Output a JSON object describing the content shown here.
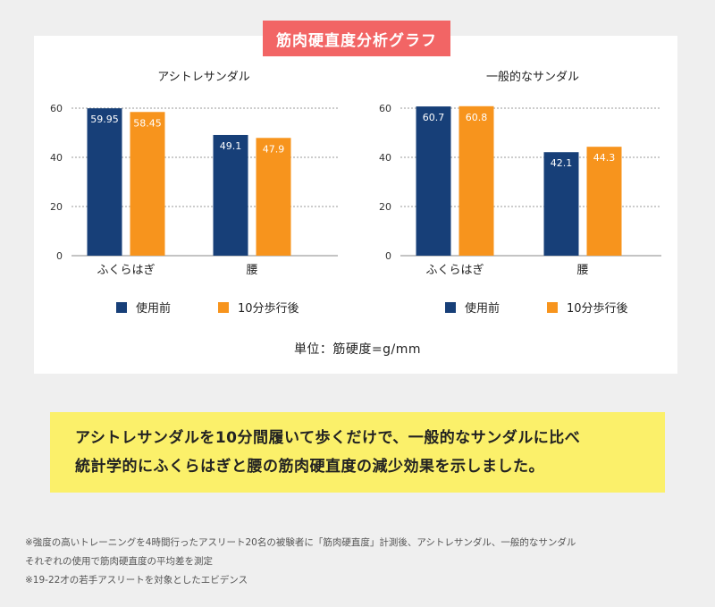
{
  "header": {
    "title": "筋肉硬直度分析グラフ"
  },
  "colors": {
    "before": "#173f78",
    "after": "#f7941d",
    "tag": "#f26565",
    "highlight": "#fbf06a"
  },
  "chart_data": [
    {
      "type": "bar",
      "title": "アシトレサンダル",
      "categories": [
        "ふくらはぎ",
        "腰"
      ],
      "series": [
        {
          "name": "使用前",
          "values": [
            59.95,
            49.1
          ],
          "labels": [
            "59.95",
            "49.1"
          ]
        },
        {
          "name": "10分歩行後",
          "values": [
            58.45,
            47.9
          ],
          "labels": [
            "58.45",
            "47.9"
          ]
        }
      ],
      "ylim": [
        0,
        60
      ],
      "yticks": [
        "0",
        "20",
        "40",
        "60"
      ],
      "grid": true
    },
    {
      "type": "bar",
      "title": "一般的なサンダル",
      "categories": [
        "ふくらはぎ",
        "腰"
      ],
      "series": [
        {
          "name": "使用前",
          "values": [
            60.7,
            42.1
          ],
          "labels": [
            "60.7",
            "42.1"
          ]
        },
        {
          "name": "10分歩行後",
          "values": [
            60.8,
            44.3
          ],
          "labels": [
            "60.8",
            "44.3"
          ]
        }
      ],
      "ylim": [
        0,
        60
      ],
      "yticks": [
        "0",
        "20",
        "40",
        "60"
      ],
      "grid": true
    }
  ],
  "legend": {
    "before": "使用前",
    "after": "10分歩行後"
  },
  "unit": "単位：筋硬度=g/mm",
  "highlight": {
    "line1": "アシトレサンダルを10分間履いて歩くだけで、一般的なサンダルに比べ",
    "line2": "統計学的にふくらはぎと腰の筋肉硬直度の減少効果を示しました。"
  },
  "notes": [
    "※強度の高いトレーニングを4時間行ったアスリート20名の被験者に「筋肉硬直度」計測後、アシトレサンダル、一般的なサンダル",
    "それぞれの使用で筋肉硬直度の平均差を測定",
    "※19-22才の若手アスリートを対象としたエビデンス"
  ]
}
